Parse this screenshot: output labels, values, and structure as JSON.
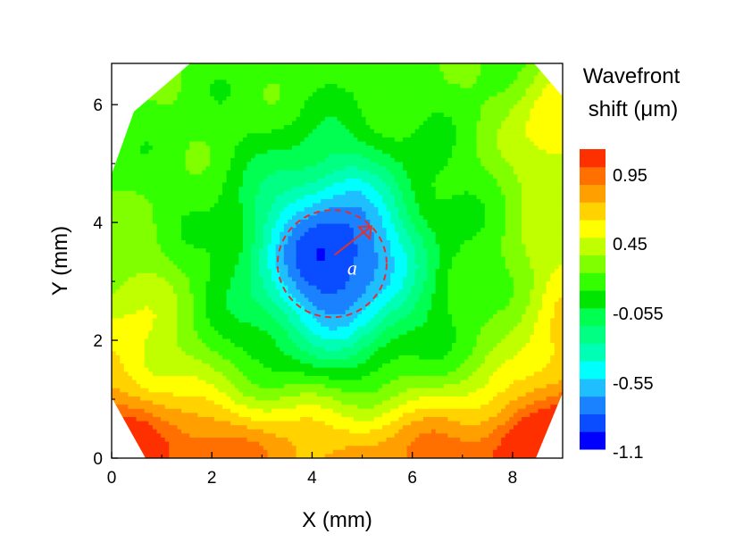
{
  "chart_data": {
    "type": "heatmap",
    "title": "",
    "xlabel": "X (mm)",
    "ylabel": "Y (mm)",
    "xlim": [
      0,
      9
    ],
    "ylim": [
      0,
      6.7
    ],
    "x_ticks": [
      0,
      2,
      4,
      6,
      8
    ],
    "y_ticks": [
      0,
      2,
      4,
      6
    ],
    "x_tick_labels": [
      "0",
      "2",
      "4",
      "6",
      "8"
    ],
    "y_tick_labels": [
      "0",
      "2",
      "4",
      "6"
    ],
    "colorbar": {
      "title_line1": "Wavefront",
      "title_line2": "shift (μm)",
      "range": [
        -1.1,
        1.1
      ],
      "tick_labels": [
        "0.95",
        "0.45",
        "-0.055",
        "-0.55",
        "-1.1"
      ],
      "colors": [
        "#0000ff",
        "#0a4cff",
        "#1a82ff",
        "#1fbfff",
        "#00ffff",
        "#00ffb4",
        "#00ff82",
        "#00ff50",
        "#00e600",
        "#33ff00",
        "#80ff00",
        "#bfff00",
        "#ffff00",
        "#ffd200",
        "#ffa000",
        "#ff7000",
        "#ff3000"
      ]
    },
    "field": {
      "description_values": "wavefront shift in μm",
      "center": [
        4.45,
        3.4
      ],
      "center_value": -1.1,
      "annotation_label": "a",
      "annotation_radius_mm": 1.1
    },
    "grid": false,
    "legend_position": "right"
  }
}
